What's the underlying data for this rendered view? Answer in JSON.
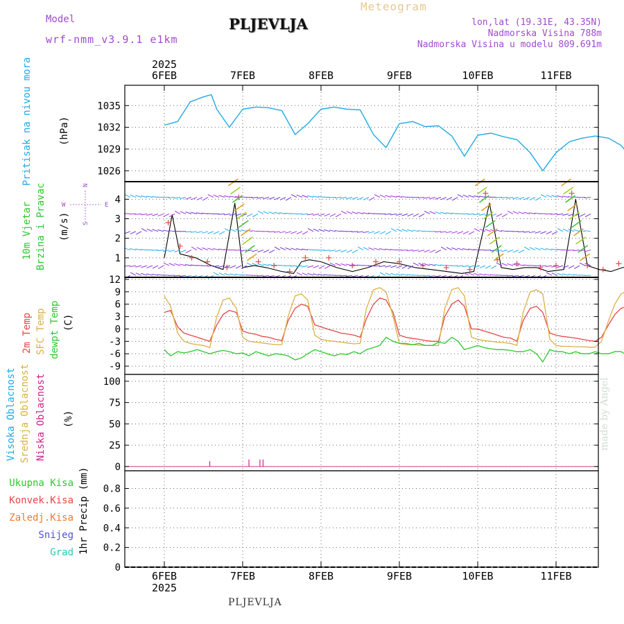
{
  "header": {
    "model_label": "Model",
    "model_name": "wrf-nmm_v3.9.1 e1km",
    "title": "PLJEVLJA",
    "meteogram": "Meteogram",
    "lonlat": "lon,lat (19.31E, 43.35N)",
    "altitude": "Nadmorska Visina 788m",
    "model_altitude": "Nadmorska Visina u modelu 809.691m",
    "footer": "PLJEVLJA",
    "credit": "made by Angel"
  },
  "colors": {
    "pressure": "#1fa9e6",
    "temp2m": "#e64646",
    "sfc_temp": "#dcb044",
    "dewpoint": "#2cc82c",
    "wind_speed": "#000000",
    "gust": "#e64646",
    "high_cloud": "#1fa9e6",
    "mid_cloud": "#dcb044",
    "low_cloud": "#d0208c",
    "total_precip": "#2cc82c",
    "conv_precip": "#e64646",
    "frz_precip": "#f0782c",
    "snow": "#5050e0",
    "hail": "#28c8b4",
    "header_text": "#a04ad0",
    "meteogram_text": "#e8c890"
  },
  "chart_data": [
    {
      "type": "line",
      "panel": "pressure",
      "ylabel_colored": "Pritisak na nivou mora",
      "ylabel_unit": "(hPa)",
      "yticks": [
        1026,
        1029,
        1032,
        1035
      ],
      "ylim": [
        1024.5,
        1037.8
      ],
      "grid": true,
      "x_day_offset": [
        0,
        0.17,
        0.33,
        0.5,
        0.6,
        0.67,
        0.83,
        1.0,
        1.17,
        1.33,
        1.5,
        1.67,
        1.83,
        2.0,
        2.17,
        2.33,
        2.5,
        2.67,
        2.83,
        3.0,
        3.17,
        3.33,
        3.5,
        3.67,
        3.83,
        4.0,
        4.17,
        4.33,
        4.5,
        4.67,
        4.83,
        5.0,
        5.17,
        5.33,
        5.5,
        5.67,
        5.83,
        6.0
      ],
      "values": [
        1032.3,
        1032.8,
        1035.5,
        1036.2,
        1036.5,
        1034.5,
        1032.0,
        1034.5,
        1034.8,
        1034.7,
        1034.3,
        1031.0,
        1032.5,
        1034.5,
        1034.8,
        1034.5,
        1034.4,
        1031.0,
        1029.2,
        1032.5,
        1032.8,
        1032.1,
        1032.2,
        1030.8,
        1028.0,
        1030.9,
        1031.2,
        1030.7,
        1030.3,
        1028.5,
        1026.0,
        1028.5,
        1030.0,
        1030.5,
        1030.8,
        1030.5,
        1029.5,
        1027.3
      ]
    },
    {
      "type": "line",
      "panel": "wind",
      "ylabel_lines": [
        "10m Vjetar",
        "Brzina i Pravac"
      ],
      "ylabel_unit": "(m/s)",
      "compass": {
        "n": "N",
        "w": "W",
        "e": "E",
        "s": "S"
      },
      "yticks": [
        1,
        2,
        3,
        4
      ],
      "ylim": [
        0,
        4.9
      ],
      "grid": true,
      "series": [
        {
          "role": "speed",
          "x_day_offset": [
            0,
            0.1,
            0.2,
            0.4,
            0.6,
            0.75,
            0.9,
            1.0,
            1.15,
            1.3,
            1.5,
            1.65,
            1.75,
            1.85,
            2.0,
            2.2,
            2.4,
            2.6,
            2.8,
            3.0,
            3.2,
            3.4,
            3.6,
            3.8,
            3.95,
            4.15,
            4.3,
            4.45,
            4.6,
            4.75,
            4.9,
            5.1,
            5.25,
            5.4,
            5.55,
            5.7,
            5.85,
            6.0
          ],
          "values": [
            1.0,
            3.2,
            1.2,
            1.0,
            0.6,
            0.4,
            3.8,
            0.5,
            0.6,
            0.5,
            0.3,
            0.2,
            0.8,
            0.9,
            0.8,
            0.5,
            0.3,
            0.5,
            0.8,
            0.7,
            0.5,
            0.4,
            0.3,
            0.2,
            0.3,
            3.8,
            0.5,
            0.4,
            0.5,
            0.5,
            0.3,
            0.4,
            4.0,
            0.6,
            0.4,
            0.3,
            0.5,
            0.6
          ]
        },
        {
          "role": "gust",
          "x_day_offset": [
            0.05,
            0.2,
            0.35,
            0.55,
            0.8,
            0.95,
            1.2,
            1.4,
            1.6,
            1.8,
            2.1,
            2.4,
            2.7,
            3.0,
            3.3,
            3.6,
            3.9,
            4.1,
            4.25,
            4.5,
            4.8,
            5.0,
            5.2,
            5.4,
            5.6,
            5.8,
            6.0
          ],
          "values": [
            2.8,
            1.6,
            1.0,
            0.8,
            0.5,
            4.1,
            0.8,
            0.6,
            0.3,
            1.0,
            1.0,
            0.6,
            0.8,
            0.8,
            0.6,
            0.5,
            0.4,
            4.3,
            0.9,
            0.7,
            0.5,
            0.6,
            4.3,
            0.6,
            0.4,
            0.7,
            0.8
          ]
        }
      ]
    },
    {
      "type": "line",
      "panel": "temperature",
      "ylabel_lines": [
        "2m Temp",
        "SFC Temp",
        "dewpt Temp"
      ],
      "ylabel_unit": "(C)",
      "yticks": [
        -9,
        -6,
        -3,
        0,
        3,
        6,
        9,
        12
      ],
      "ylim": [
        -11,
        12.5
      ],
      "grid": true,
      "x_day_offset": [
        0,
        0.08,
        0.17,
        0.25,
        0.33,
        0.42,
        0.5,
        0.58,
        0.67,
        0.75,
        0.83,
        0.92,
        1.0,
        1.08,
        1.17,
        1.25,
        1.33,
        1.42,
        1.5,
        1.58,
        1.67,
        1.75,
        1.83,
        1.92,
        2.0,
        2.08,
        2.17,
        2.25,
        2.33,
        2.42,
        2.5,
        2.58,
        2.67,
        2.75,
        2.83,
        2.92,
        3.0,
        3.08,
        3.17,
        3.25,
        3.33,
        3.42,
        3.5,
        3.58,
        3.67,
        3.75,
        3.83,
        3.92,
        4.0,
        4.08,
        4.17,
        4.25,
        4.33,
        4.42,
        4.5,
        4.58,
        4.67,
        4.75,
        4.83,
        4.92,
        5.0,
        5.08,
        5.17,
        5.25,
        5.33,
        5.42,
        5.5,
        5.58,
        5.67,
        5.75,
        5.83,
        5.92,
        6.0
      ],
      "series": [
        {
          "name": "2m Temp",
          "values": [
            4.0,
            4.5,
            0.5,
            -1.0,
            -1.5,
            -2.0,
            -2.5,
            -3.0,
            1.0,
            3.5,
            4.5,
            4.0,
            -0.5,
            -1.0,
            -1.3,
            -1.8,
            -2.0,
            -2.5,
            -2.8,
            2.0,
            5.0,
            6.0,
            5.5,
            1.0,
            0.5,
            0.0,
            -0.5,
            -1.0,
            -1.2,
            -1.5,
            -2.0,
            2.5,
            6.0,
            7.5,
            7.0,
            4.0,
            -1.5,
            -2.0,
            -2.3,
            -2.5,
            -2.8,
            -3.0,
            -3.0,
            3.0,
            6.0,
            7.0,
            5.5,
            0.0,
            0.0,
            -0.5,
            -1.0,
            -1.5,
            -2.0,
            -2.2,
            -3.0,
            2.0,
            5.0,
            5.5,
            4.0,
            -1.0,
            -1.5,
            -1.8,
            -2.0,
            -2.2,
            -2.5,
            -2.8,
            -3.0,
            -2.0,
            1.0,
            3.5,
            5.0,
            5.5,
            5.7
          ]
        },
        {
          "name": "SFC Temp",
          "values": [
            8.0,
            5.5,
            -1.0,
            -3.0,
            -3.5,
            -3.8,
            -4.0,
            -4.5,
            3.0,
            7.0,
            7.5,
            5.0,
            -2.0,
            -3.0,
            -3.2,
            -3.4,
            -3.6,
            -3.8,
            -3.8,
            3.0,
            8.0,
            8.5,
            7.0,
            -1.5,
            -2.5,
            -2.8,
            -3.0,
            -3.2,
            -3.4,
            -3.6,
            -3.5,
            5.0,
            9.5,
            10.0,
            9.0,
            3.0,
            -3.5,
            -3.8,
            -3.8,
            -3.9,
            -4.0,
            -4.0,
            -4.0,
            5.0,
            9.5,
            10.0,
            8.0,
            -2.0,
            -2.5,
            -2.8,
            -3.0,
            -3.2,
            -3.3,
            -3.5,
            -4.0,
            4.0,
            9.0,
            9.5,
            8.5,
            -2.5,
            -4.0,
            -4.2,
            -4.2,
            -4.3,
            -4.3,
            -4.4,
            -4.4,
            -3.0,
            2.0,
            6.0,
            8.5,
            9.3,
            9.5
          ]
        },
        {
          "name": "dewpt Temp",
          "values": [
            -5.0,
            -6.5,
            -5.5,
            -5.8,
            -5.5,
            -5.0,
            -5.5,
            -6.0,
            -5.5,
            -5.2,
            -5.5,
            -6.0,
            -5.8,
            -6.5,
            -5.5,
            -6.0,
            -6.5,
            -6.0,
            -6.2,
            -6.5,
            -7.5,
            -7.0,
            -6.0,
            -5.0,
            -5.5,
            -6.0,
            -6.5,
            -6.0,
            -6.2,
            -5.5,
            -6.0,
            -5.0,
            -4.5,
            -4.0,
            -2.0,
            -3.0,
            -3.5,
            -3.5,
            -3.8,
            -3.5,
            -4.0,
            -4.0,
            -3.2,
            -3.5,
            -2.0,
            -3.0,
            -5.0,
            -4.5,
            -4.0,
            -4.5,
            -4.8,
            -5.0,
            -5.0,
            -5.2,
            -5.5,
            -5.5,
            -5.0,
            -6.0,
            -8.0,
            -5.0,
            -5.5,
            -5.5,
            -6.0,
            -5.5,
            -6.0,
            -6.0,
            -5.5,
            -6.0,
            -6.0,
            -5.5,
            -5.5,
            -6.5,
            -9.5
          ]
        }
      ]
    },
    {
      "type": "bar",
      "panel": "cloud",
      "ylabel_lines": [
        "Visoka Oblacnost",
        "Srednja Oblacnost",
        "Niska Oblacnost"
      ],
      "ylabel_unit": "(%)",
      "yticks": [
        0,
        25,
        50,
        75,
        100
      ],
      "ylim": [
        -5,
        108
      ],
      "grid": true,
      "series": [
        {
          "name": "Niska Oblacnost",
          "x_day_offset": [
            0.58,
            1.08,
            1.22,
            1.26
          ],
          "values": [
            3,
            5,
            5,
            5
          ]
        }
      ]
    },
    {
      "type": "bar",
      "panel": "precip",
      "legend_labels": [
        "Ukupna Kisa",
        "Konvek.Kisa",
        "Zaledj.Kisa",
        "Snijeg",
        "Grad"
      ],
      "ylabel_unit": "1hr Precip (mm)",
      "yticks": [
        0,
        0.2,
        0.4,
        0.6,
        0.8
      ],
      "ylim": [
        0,
        0.98
      ],
      "grid": true,
      "series": []
    }
  ],
  "time_axis": {
    "year": "2025",
    "day_labels": [
      "6FEB",
      "7FEB",
      "8FEB",
      "9FEB",
      "10FEB",
      "11FEB"
    ]
  }
}
